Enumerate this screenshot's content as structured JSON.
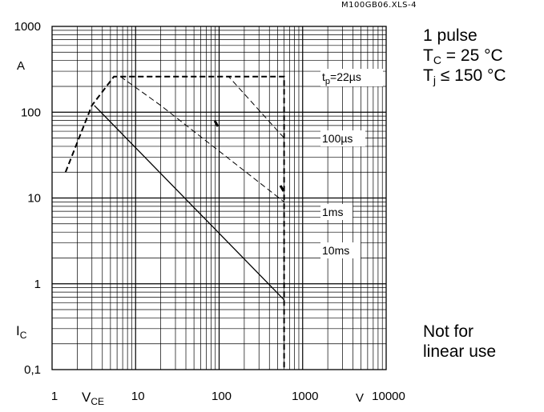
{
  "figure_id": "M100GB06.XLS-4",
  "conditions": {
    "line1": "1 pulse",
    "line2_main": "T",
    "line2_sub": "C",
    "line2_rest": " = 25 °C",
    "line3_main": "T",
    "line3_sub": "j",
    "line3_rest": " ≤ 150 °C"
  },
  "note": {
    "line1": "Not for",
    "line2": "linear use"
  },
  "y_axis": {
    "symbol": "I",
    "subscript": "C",
    "unit": "A"
  },
  "x_axis": {
    "symbol": "V",
    "subscript": "CE",
    "unit": "V"
  },
  "chart_data": {
    "type": "line",
    "x_scale": "log",
    "y_scale": "log",
    "xlim": [
      1,
      10000
    ],
    "ylim": [
      0.1,
      1000
    ],
    "x_ticks": [
      "1",
      "10",
      "100",
      "1000",
      "10000"
    ],
    "y_ticks": [
      "0,1",
      "1",
      "10",
      "100",
      "1000"
    ],
    "grid": true,
    "series": [
      {
        "name": "t_p=22µs",
        "label_main": "t",
        "label_sub": "p",
        "label_rest": "=22µs",
        "style": "dashed-bold",
        "x": [
          1.45,
          3,
          5.5,
          6.6,
          600,
          600
        ],
        "y": [
          20,
          120,
          260,
          260,
          260,
          0.1
        ]
      },
      {
        "name": "100µs",
        "label_main": "100µs",
        "style": "dashed",
        "x": [
          6.6,
          130,
          600
        ],
        "y": [
          260,
          260,
          50
        ]
      },
      {
        "name": "1ms",
        "label_main": "1ms",
        "style": "dashed",
        "x": [
          6.6,
          20,
          600
        ],
        "y": [
          260,
          120,
          9
        ]
      },
      {
        "name": "10ms",
        "label_main": "10ms",
        "style": "solid",
        "x": [
          3.2,
          600
        ],
        "y": [
          120,
          0.65
        ]
      }
    ]
  }
}
